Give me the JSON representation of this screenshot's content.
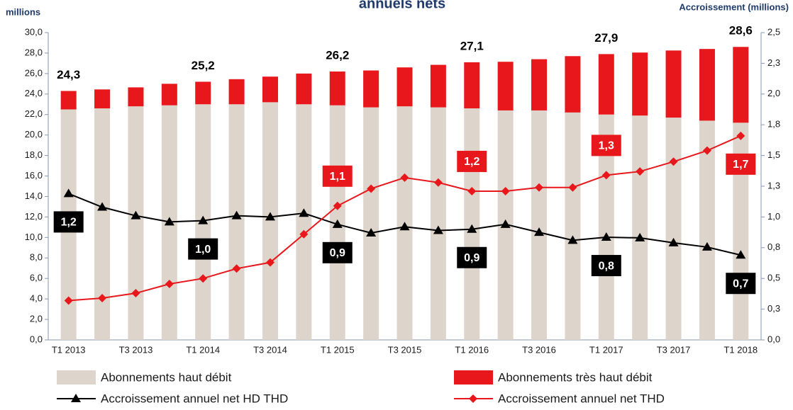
{
  "chart_data": {
    "type": "bar",
    "title": "annuels nets",
    "y_label": "millions",
    "y2_label": "Accroissement (millions)",
    "categories": [
      "T1 2013",
      null,
      "T3 2013",
      null,
      "T1 2014",
      null,
      "T3 2014",
      null,
      "T1 2015",
      null,
      "T3 2015",
      null,
      "T1 2016",
      null,
      "T3 2016",
      null,
      "T1 2017",
      null,
      "T3 2017",
      null,
      "T1 2018"
    ],
    "ylim": [
      0,
      30
    ],
    "yticks": [
      {
        "value": 0,
        "label": "0,0"
      },
      {
        "value": 2,
        "label": "2,0"
      },
      {
        "value": 4,
        "label": "4,0"
      },
      {
        "value": 6,
        "label": "6,0"
      },
      {
        "value": 8,
        "label": "8,0"
      },
      {
        "value": 10,
        "label": "10,0"
      },
      {
        "value": 12,
        "label": "12,0"
      },
      {
        "value": 14,
        "label": "14,0"
      },
      {
        "value": 16,
        "label": "16,0"
      },
      {
        "value": 18,
        "label": "18,0"
      },
      {
        "value": 20,
        "label": "20,0"
      },
      {
        "value": 22,
        "label": "22,0"
      },
      {
        "value": 24,
        "label": "24,0"
      },
      {
        "value": 26,
        "label": "26,0"
      },
      {
        "value": 28,
        "label": "28,0"
      },
      {
        "value": 30,
        "label": "30,0"
      }
    ],
    "y2lim": [
      0,
      2.5
    ],
    "y2ticks": [
      {
        "value": 0,
        "label": "0,0"
      },
      {
        "value": 0.25,
        "label": "0,3"
      },
      {
        "value": 0.5,
        "label": "0,5"
      },
      {
        "value": 0.75,
        "label": "0,8"
      },
      {
        "value": 1,
        "label": "1,0"
      },
      {
        "value": 1.25,
        "label": "1,3"
      },
      {
        "value": 1.5,
        "label": "1,5"
      },
      {
        "value": 1.75,
        "label": "1,8"
      },
      {
        "value": 2,
        "label": "2,0"
      },
      {
        "value": 2.25,
        "label": "2,3"
      },
      {
        "value": 2.5,
        "label": "2,5"
      }
    ],
    "stacked": true,
    "series": [
      {
        "name": "Abonnements haut débit",
        "type": "bar",
        "color": "#ddd5cb",
        "values": [
          22.5,
          22.6,
          22.8,
          22.9,
          23.0,
          23.0,
          23.2,
          23.0,
          22.9,
          22.7,
          22.8,
          22.7,
          22.6,
          22.4,
          22.4,
          22.2,
          22.0,
          21.9,
          21.7,
          21.4,
          21.2
        ]
      },
      {
        "name": "Abonnements très haut débit",
        "type": "bar",
        "color": "#e8171b",
        "values": [
          1.8,
          1.85,
          1.85,
          2.1,
          2.2,
          2.45,
          2.5,
          3.0,
          3.3,
          3.6,
          3.8,
          4.15,
          4.5,
          4.75,
          5.0,
          5.5,
          5.9,
          6.15,
          6.55,
          7.0,
          7.4
        ]
      },
      {
        "name": "Accroissement annuel net HD THD",
        "type": "line",
        "axis": "y2",
        "color": "#000000",
        "marker": "triangle",
        "values": [
          1.19,
          1.08,
          1.01,
          0.96,
          0.97,
          1.01,
          1.0,
          1.03,
          0.94,
          0.87,
          0.92,
          0.89,
          0.9,
          0.94,
          0.875,
          0.81,
          0.835,
          0.83,
          0.79,
          0.755,
          0.69
        ],
        "value_labels": [
          "1,2",
          null,
          null,
          null,
          "1,0",
          null,
          null,
          null,
          "0,9",
          null,
          null,
          null,
          "0,9",
          null,
          null,
          null,
          "0,8",
          null,
          null,
          null,
          "0,7"
        ]
      },
      {
        "name": "Accroissement annuel net THD",
        "type": "line",
        "axis": "y2",
        "color": "#e8171b",
        "marker": "diamond",
        "values": [
          0.32,
          0.34,
          0.38,
          0.455,
          0.5,
          0.58,
          0.63,
          0.86,
          1.09,
          1.23,
          1.32,
          1.28,
          1.21,
          1.21,
          1.24,
          1.24,
          1.34,
          1.37,
          1.45,
          1.54,
          1.66
        ],
        "value_labels": [
          null,
          null,
          null,
          null,
          null,
          null,
          null,
          null,
          "1,1",
          null,
          null,
          null,
          "1,2",
          null,
          null,
          null,
          "1,3",
          null,
          null,
          null,
          "1,7"
        ]
      }
    ],
    "annotations": [
      {
        "text": "24,3",
        "category": "T1 2013"
      },
      {
        "text": "25,2",
        "category": "T1 2014"
      },
      {
        "text": "26,2",
        "category": "T1 2015"
      },
      {
        "text": "27,1",
        "category": "T1 2016"
      },
      {
        "text": "27,9",
        "category": "T1 2017"
      },
      {
        "text": "28,6",
        "category": "T1 2018"
      }
    ]
  }
}
